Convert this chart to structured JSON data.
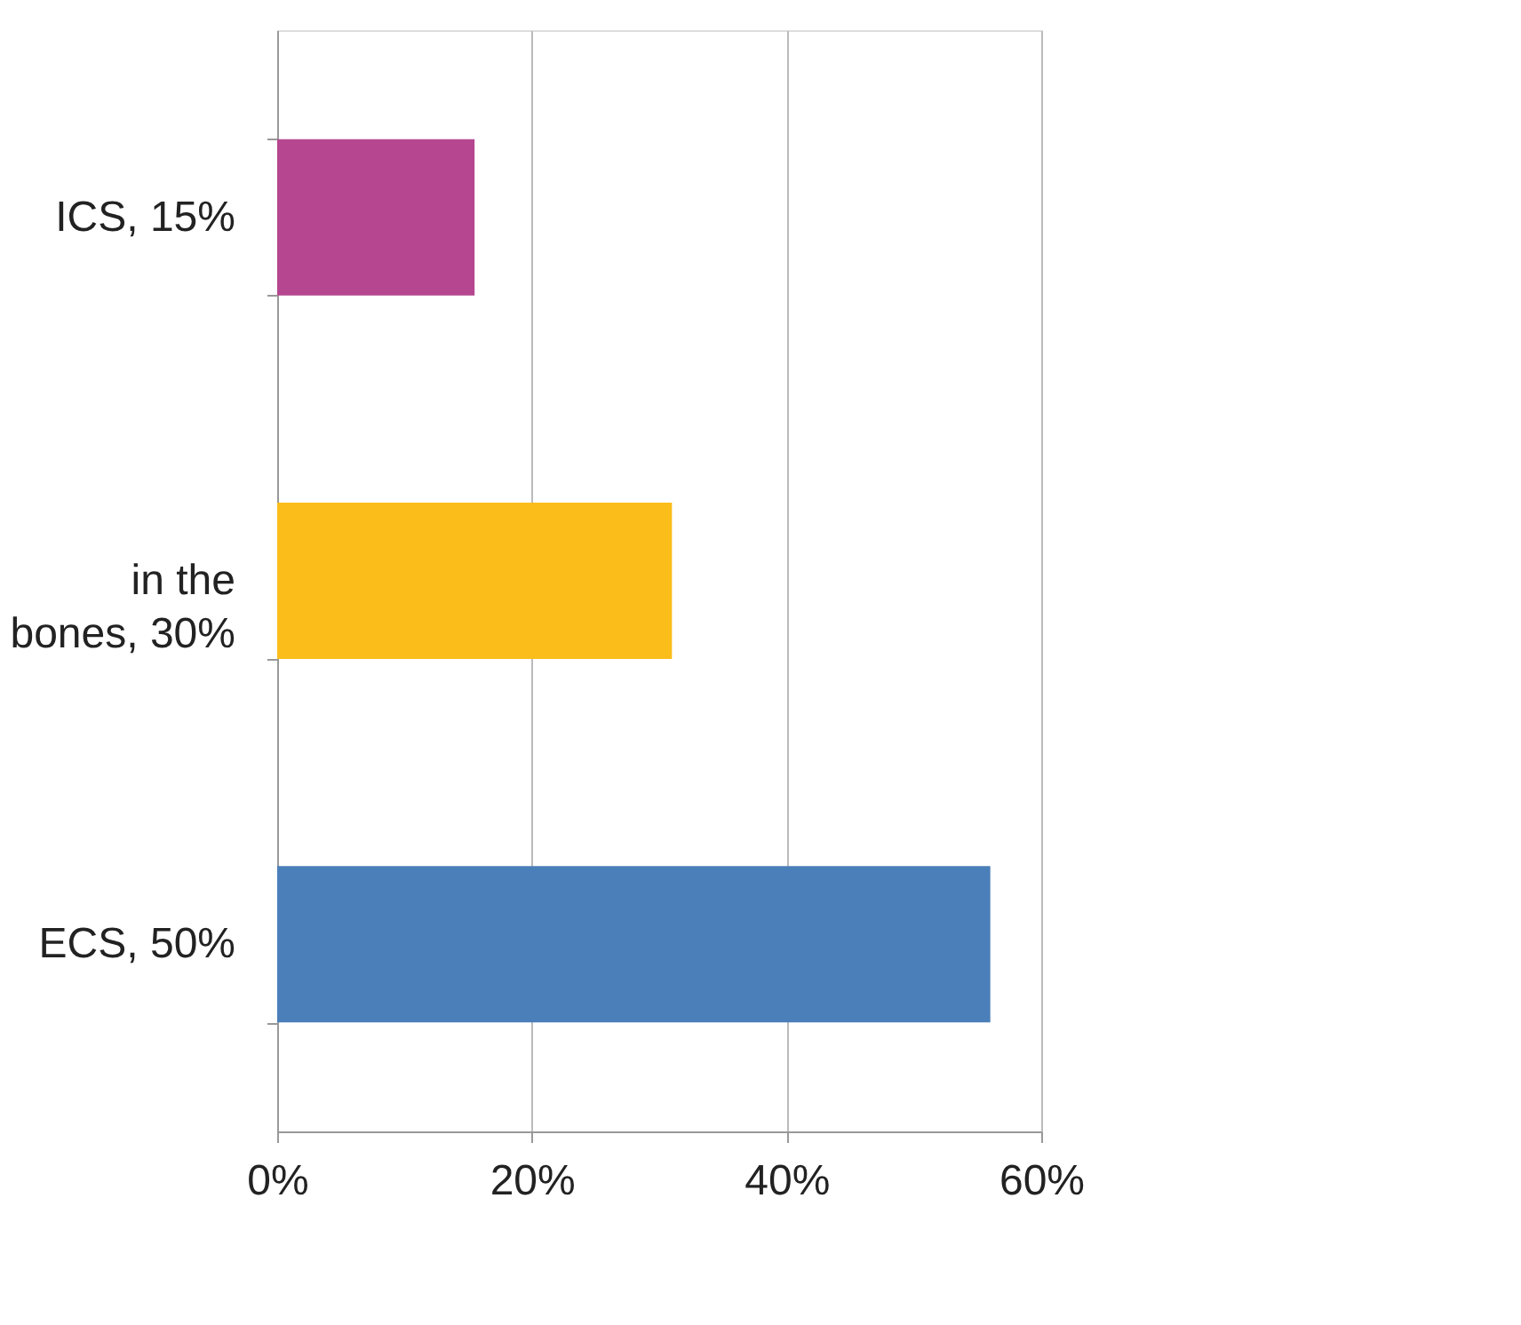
{
  "chart_data": {
    "type": "bar",
    "orientation": "horizontal",
    "categories": [
      "ICS, 15%",
      "in the\nbones, 30%",
      "ECS, 50%"
    ],
    "values": [
      15.5,
      31,
      56
    ],
    "colors": [
      "#b5468f",
      "#fbbd1a",
      "#4a7fb9"
    ],
    "xlim": [
      0,
      60
    ],
    "xticks": [
      {
        "value": 0,
        "label": "0%"
      },
      {
        "value": 20,
        "label": "20%"
      },
      {
        "value": 40,
        "label": "40%"
      },
      {
        "value": 60,
        "label": "60%"
      }
    ],
    "grid": "x"
  }
}
